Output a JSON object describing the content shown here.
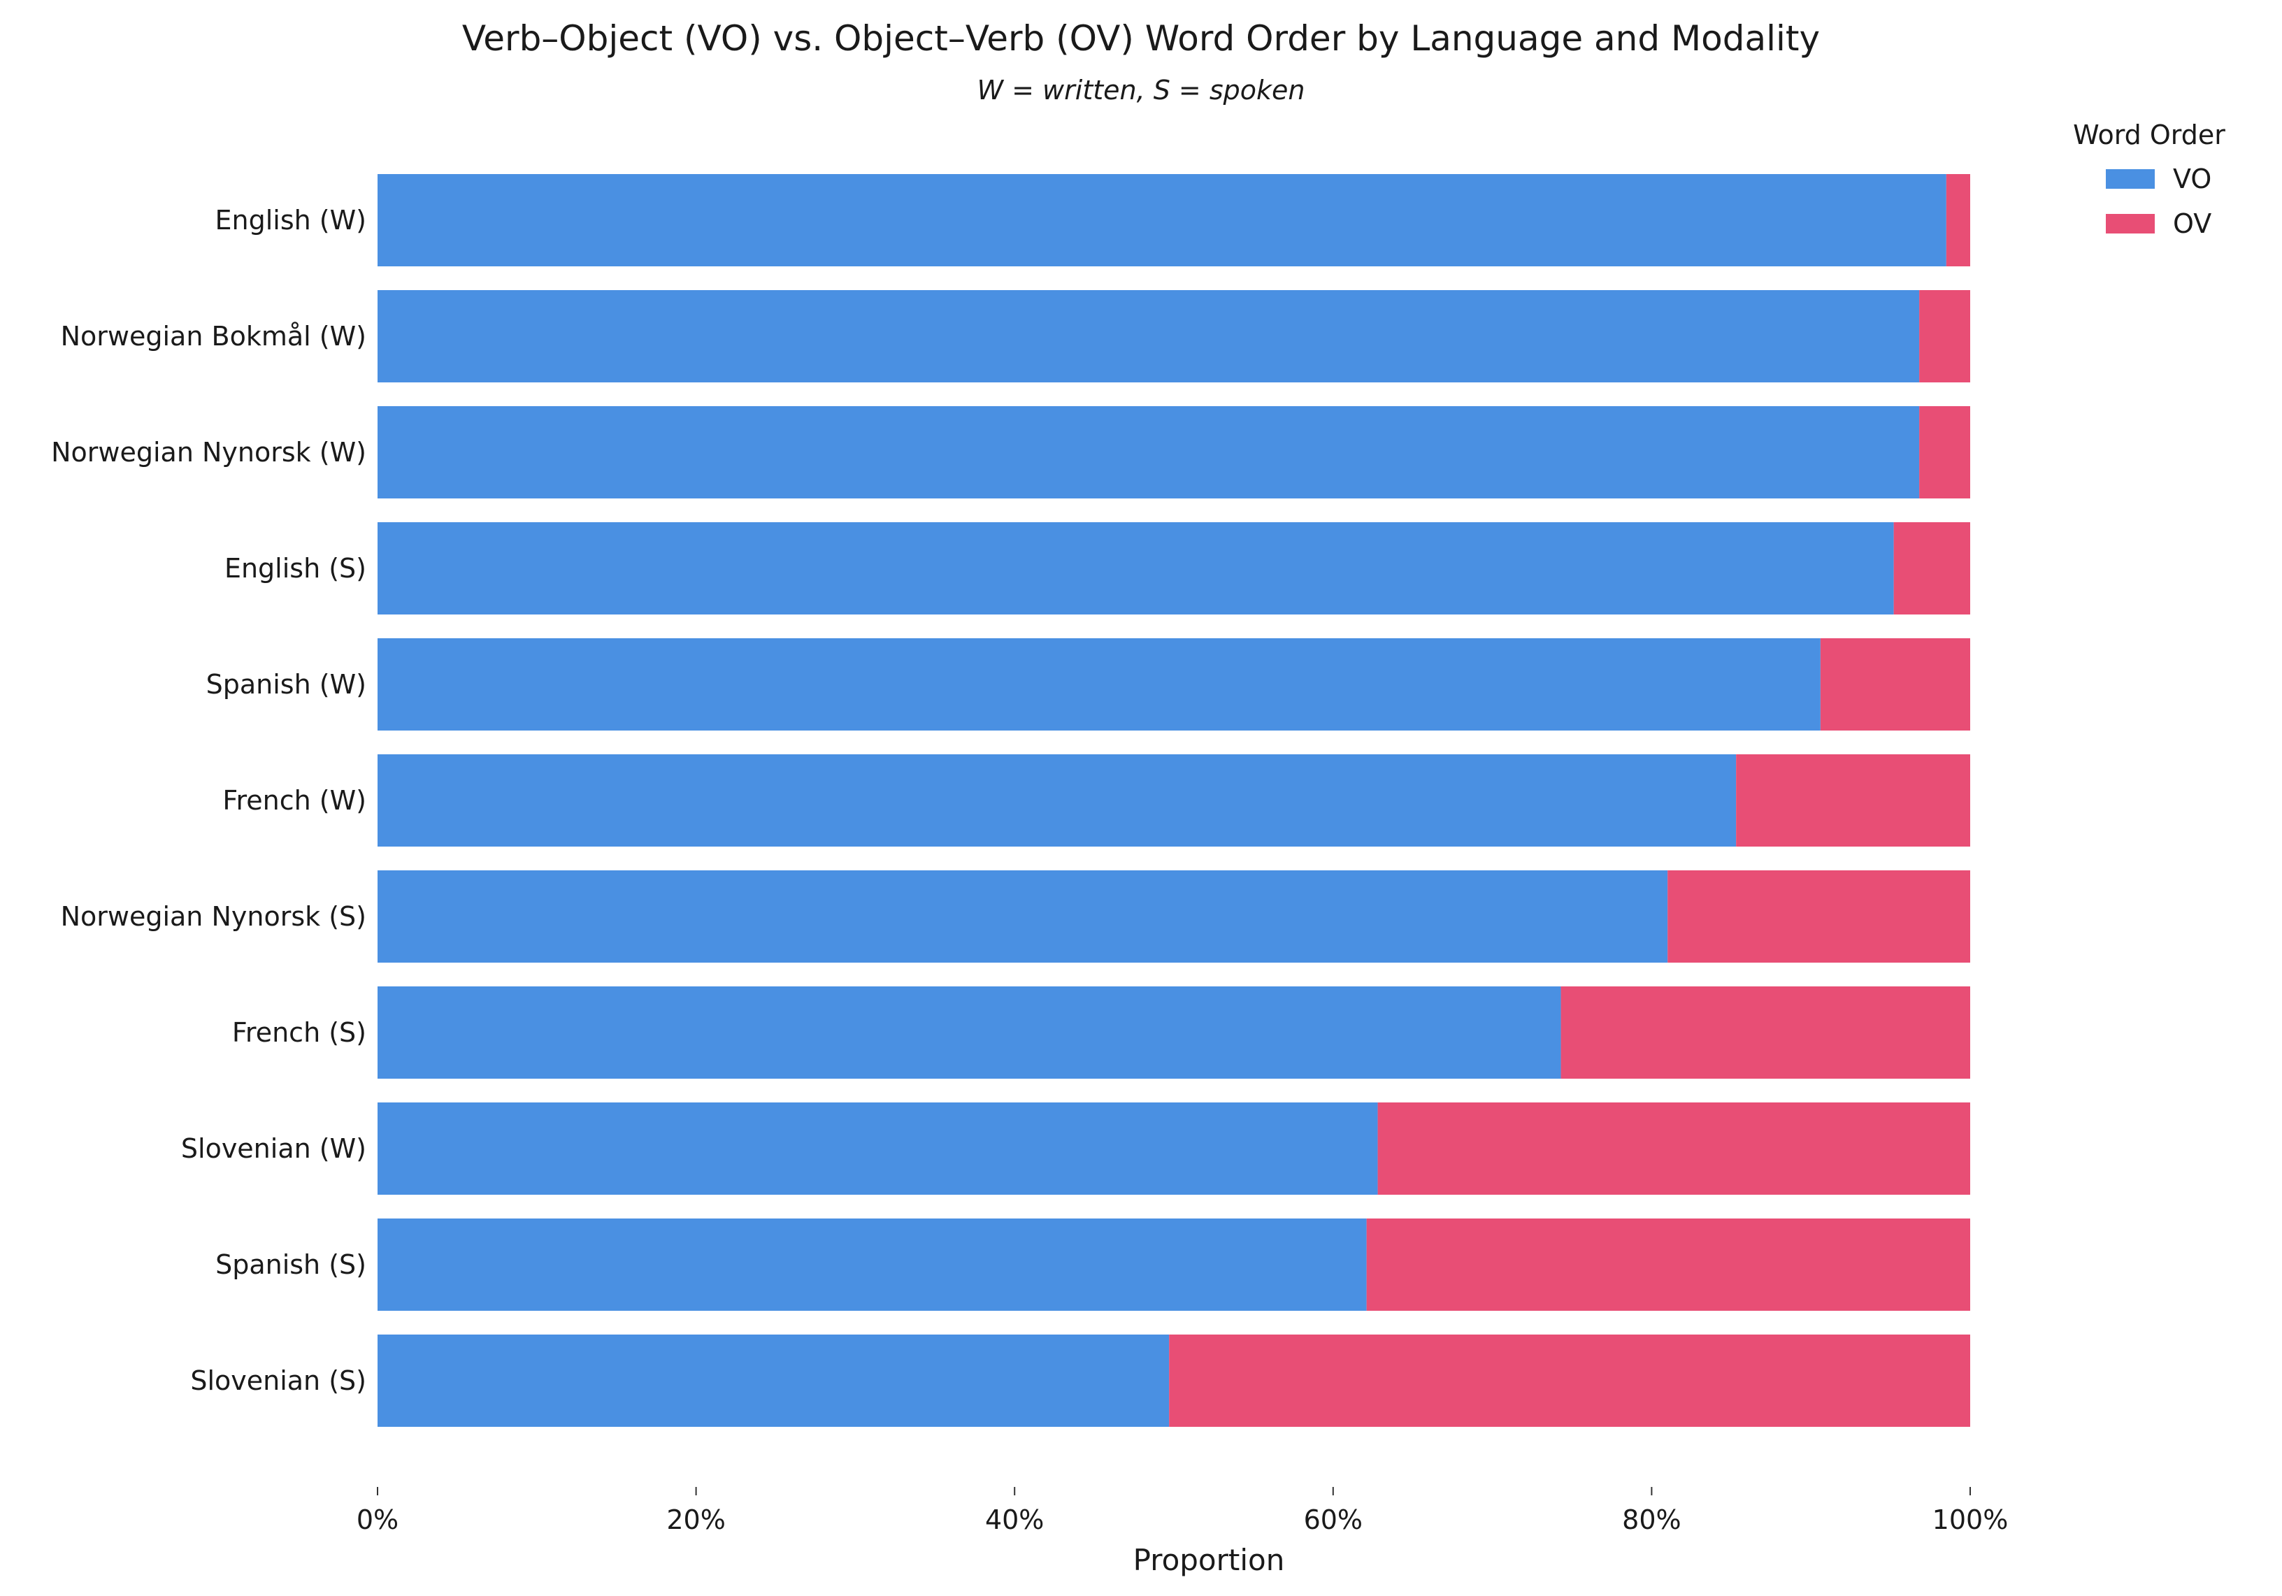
{
  "chart_data": {
    "type": "bar",
    "orientation": "horizontal",
    "stacked": true,
    "title": "Verb–Object (VO) vs. Object–Verb (OV) Word Order by Language and Modality",
    "subtitle": "W = written, S = spoken",
    "xlabel": "Proportion",
    "ylabel": "",
    "xlim": [
      0,
      1
    ],
    "x_tick_labels": [
      "0%",
      "20%",
      "40%",
      "60%",
      "80%",
      "100%"
    ],
    "x_tick_values": [
      0,
      0.2,
      0.4,
      0.6,
      0.8,
      1.0
    ],
    "grid": false,
    "legend": {
      "title": "Word Order",
      "placement": "top-right"
    },
    "categories": [
      "English (W)",
      "Norwegian Bokmål (W)",
      "Norwegian Nynorsk (W)",
      "English (S)",
      "Spanish (W)",
      "French (W)",
      "Norwegian Nynorsk (S)",
      "French (S)",
      "Slovenian (W)",
      "Spanish (S)",
      "Slovenian (S)"
    ],
    "series": [
      {
        "name": "VO",
        "color": "#4A90E2",
        "values": [
          0.985,
          0.968,
          0.968,
          0.952,
          0.906,
          0.853,
          0.81,
          0.743,
          0.628,
          0.621,
          0.497
        ]
      },
      {
        "name": "OV",
        "color": "#E84E75",
        "values": [
          0.015,
          0.032,
          0.032,
          0.048,
          0.094,
          0.147,
          0.19,
          0.257,
          0.372,
          0.379,
          0.503
        ]
      }
    ]
  }
}
